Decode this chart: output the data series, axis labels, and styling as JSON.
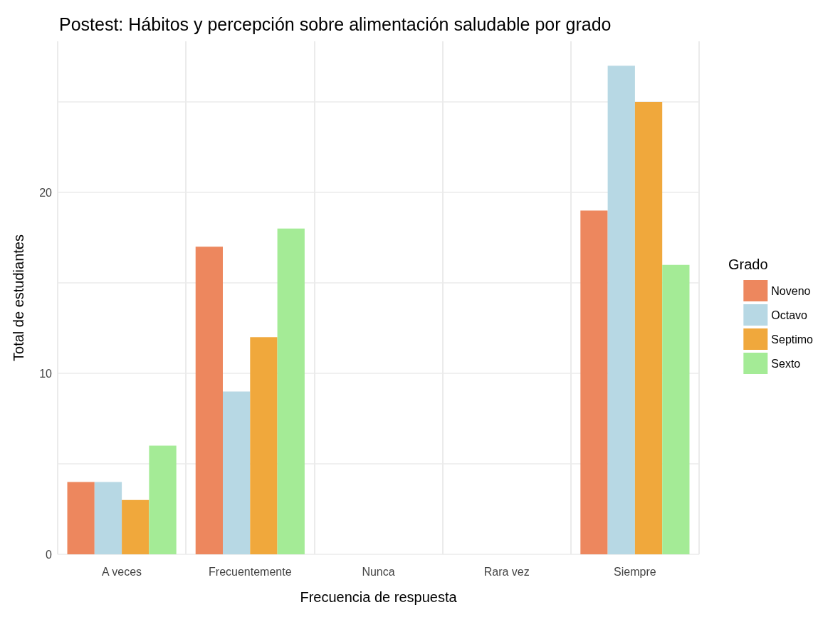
{
  "chart_data": {
    "type": "bar",
    "title": "Postest: Hábitos y percepción sobre alimentación saludable por grado",
    "xlabel": "Frecuencia de respuesta",
    "ylabel": "Total de estudiantes",
    "legend_title": "Grado",
    "categories": [
      "A veces",
      "Frecuentemente",
      "Nunca",
      "Rara vez",
      "Siempre"
    ],
    "series": [
      {
        "name": "Noveno",
        "color": "#ed875e",
        "values": [
          4,
          17,
          0,
          0,
          19
        ]
      },
      {
        "name": "Octavo",
        "color": "#b7d8e4",
        "values": [
          4,
          9,
          0,
          0,
          27
        ]
      },
      {
        "name": "Septimo",
        "color": "#f0a83c",
        "values": [
          3,
          12,
          0,
          0,
          25
        ]
      },
      {
        "name": "Sexto",
        "color": "#a4eb96",
        "values": [
          6,
          18,
          0,
          0,
          16
        ]
      }
    ],
    "ylim": [
      0,
      28.35
    ],
    "yticks": [
      0,
      {
        "value": 5,
        "label": null
      },
      10,
      {
        "value": 15,
        "label": null
      },
      20,
      {
        "value": 25,
        "label": null
      }
    ],
    "grid": true,
    "legend": "right"
  }
}
